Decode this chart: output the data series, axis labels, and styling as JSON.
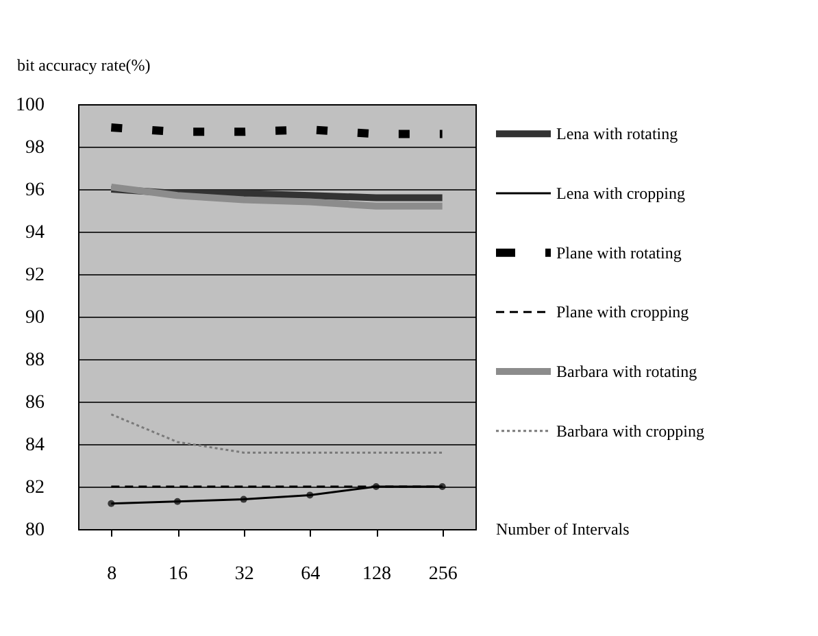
{
  "chart_data": {
    "type": "line",
    "xlabel": "Number of Intervals",
    "ylabel": "bit accuracy rate(%)",
    "categories": [
      "8",
      "16",
      "32",
      "64",
      "128",
      "256"
    ],
    "series": [
      {
        "name": "Lena with rotating",
        "color": "#333333",
        "line_style": "solid",
        "values": [
          96.0,
          95.8,
          95.8,
          95.7,
          95.6,
          95.6
        ]
      },
      {
        "name": "Lena with cropping",
        "color": "#000000",
        "line_style": "solid",
        "marker": "circle",
        "values": [
          81.2,
          81.3,
          81.4,
          81.6,
          82.0,
          82.0
        ]
      },
      {
        "name": "Plane with rotating",
        "color": "#000000",
        "line_style": "dashed",
        "values": [
          98.9,
          98.7,
          98.7,
          98.8,
          98.6,
          98.6
        ]
      },
      {
        "name": "Plane with cropping",
        "color": "#000000",
        "line_style": "dashed",
        "values": [
          82.0,
          82.0,
          82.0,
          82.0,
          82.0,
          82.0
        ]
      },
      {
        "name": "Barbara with rotating",
        "color": "#8c8c8c",
        "line_style": "solid",
        "values": [
          96.1,
          95.7,
          95.5,
          95.4,
          95.2,
          95.2
        ]
      },
      {
        "name": "Barbara with cropping",
        "color": "#7a7a7a",
        "line_style": "dotted",
        "values": [
          85.4,
          84.1,
          83.6,
          83.6,
          83.6,
          83.6
        ]
      }
    ],
    "ylim": [
      80,
      100
    ],
    "yticks": [
      80,
      82,
      84,
      86,
      88,
      90,
      92,
      94,
      96,
      98,
      100
    ],
    "grid": "y",
    "legend": "right"
  }
}
